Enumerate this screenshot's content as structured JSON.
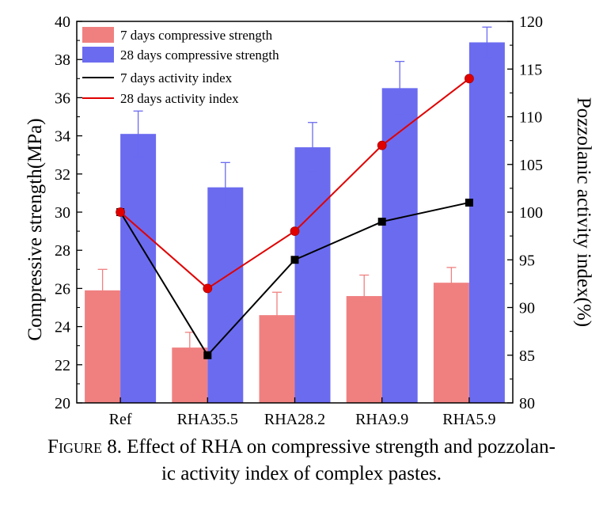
{
  "chart_data": {
    "type": "bar",
    "categories": [
      "Ref",
      "RHA35.5",
      "RHA28.2",
      "RHA9.9",
      "RHA5.9"
    ],
    "series": [
      {
        "name": "7 days compressive strength",
        "kind": "bar",
        "axis": "left",
        "color": "#f08080",
        "values": [
          25.9,
          22.9,
          24.6,
          25.6,
          26.3
        ],
        "errors": [
          1.1,
          0.8,
          1.2,
          1.1,
          0.8
        ]
      },
      {
        "name": "28 days compressive strength",
        "kind": "bar",
        "axis": "left",
        "color": "#6b6bf0",
        "values": [
          34.1,
          31.3,
          33.4,
          36.5,
          38.9
        ],
        "errors": [
          1.2,
          1.3,
          1.3,
          1.4,
          0.8
        ]
      },
      {
        "name": "7 days activity index",
        "kind": "line",
        "axis": "right",
        "color": "#000000",
        "values": [
          100,
          85,
          95,
          99,
          101
        ]
      },
      {
        "name": "28 days activity index",
        "kind": "line",
        "axis": "right",
        "color": "#e00000",
        "values": [
          100,
          92,
          98,
          107,
          114
        ]
      }
    ],
    "ylabel": "Compressive strength(MPa)",
    "y2label": "Pozzolanic activity index(%)",
    "ylim": [
      20,
      40
    ],
    "y2lim": [
      80,
      120
    ],
    "yticks": [
      "20",
      "22",
      "24",
      "26",
      "28",
      "30",
      "32",
      "34",
      "36",
      "38",
      "40"
    ],
    "y2ticks": [
      "80",
      "85",
      "90",
      "95",
      "100",
      "105",
      "110",
      "115",
      "120"
    ],
    "legend": "top-left",
    "grid": false
  },
  "caption": {
    "prefix": "Figure 8.",
    "text": " Effect of RHA on compressive strength and pozzolan-",
    "line2": "ic activity index of complex pastes."
  }
}
